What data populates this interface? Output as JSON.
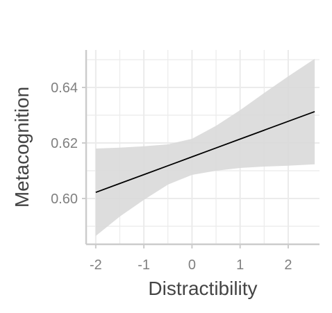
{
  "chart_data": {
    "type": "line",
    "xlabel": "Distractibility",
    "ylabel": "Metacognition",
    "xlim": [
      -2.2,
      2.65
    ],
    "ylim": [
      0.5835,
      0.6535
    ],
    "x_ticks": [
      -2,
      -1,
      0,
      1,
      2
    ],
    "x_tick_labels": [
      "-2",
      "-1",
      "0",
      "1",
      "2"
    ],
    "y_ticks": [
      0.6,
      0.62,
      0.64
    ],
    "y_tick_labels": [
      "0.60",
      "0.62",
      "0.64"
    ],
    "grid": true,
    "colors": {
      "line": "#000000",
      "ribbon": "#d9d9d9",
      "grid": "#ebebeb",
      "axis": "#cccccc"
    },
    "series": [
      {
        "x": [
          -2.0,
          -1.5,
          -1.0,
          -0.5,
          0.0,
          0.5,
          1.0,
          1.5,
          2.0,
          2.55
        ],
        "y": [
          0.6022,
          0.6054,
          0.6086,
          0.6118,
          0.615,
          0.6182,
          0.6214,
          0.6246,
          0.6278,
          0.6313
        ],
        "lower": [
          0.5865,
          0.5935,
          0.5995,
          0.605,
          0.6085,
          0.61,
          0.611,
          0.6115,
          0.6118,
          0.6123
        ],
        "upper": [
          0.618,
          0.6183,
          0.6188,
          0.6195,
          0.6215,
          0.6262,
          0.6318,
          0.638,
          0.644,
          0.6503
        ]
      }
    ]
  }
}
